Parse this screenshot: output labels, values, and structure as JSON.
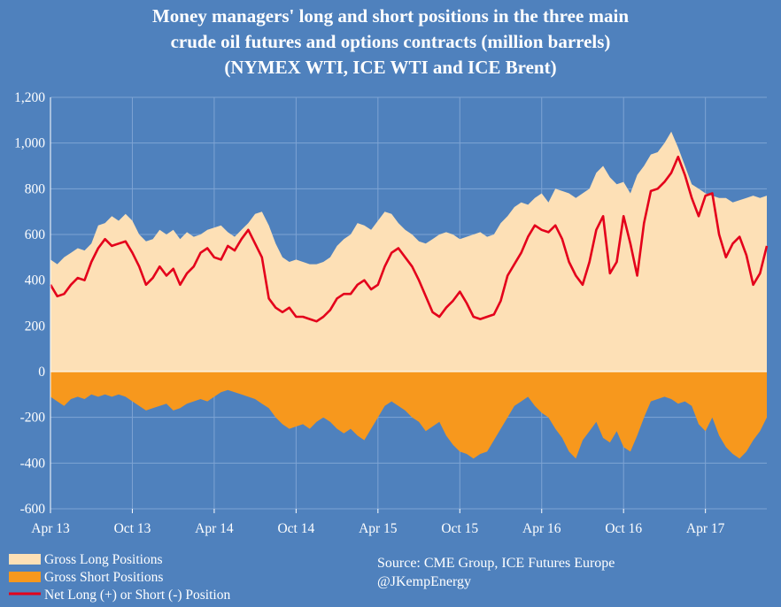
{
  "chart_data": {
    "type": "area",
    "title_lines": [
      "Money managers' long and short positions in the three main",
      "crude oil futures and options contracts (million barrels)",
      "(NYMEX WTI, ICE WTI and ICE Brent)"
    ],
    "xlabel": "",
    "ylabel": "",
    "ylim": [
      -600,
      1200
    ],
    "y_ticks": [
      -600,
      -400,
      -200,
      0,
      200,
      400,
      600,
      800,
      1000,
      1200
    ],
    "y_tick_labels": [
      "-600",
      "-400",
      "-200",
      "0",
      "200",
      "400",
      "600",
      "800",
      "1,000",
      "1,200"
    ],
    "x_range": [
      0,
      52.5
    ],
    "x_ticks": [
      0,
      6,
      12,
      18,
      24,
      30,
      36,
      42,
      48
    ],
    "x_tick_labels": [
      "Apr 13",
      "Oct 13",
      "Apr 14",
      "Oct 14",
      "Apr 15",
      "Oct 15",
      "Apr 16",
      "Oct 16",
      "Apr 17"
    ],
    "grid": true,
    "legend_position": "bottom-left",
    "colors": {
      "long": "#fde0b6",
      "short": "#f7981d",
      "net": "#e4001b",
      "background": "#4f81bd",
      "grid": "#7ea4d4"
    },
    "series": [
      {
        "name": "Gross Long Positions",
        "kind": "area",
        "x": [
          0,
          0.5,
          1,
          1.5,
          2,
          2.5,
          3,
          3.5,
          4,
          4.5,
          5,
          5.5,
          6,
          6.5,
          7,
          7.5,
          8,
          8.5,
          9,
          9.5,
          10,
          10.5,
          11,
          11.5,
          12,
          12.5,
          13,
          13.5,
          14,
          14.5,
          15,
          15.5,
          16,
          16.5,
          17,
          17.5,
          18,
          18.5,
          19,
          19.5,
          20,
          20.5,
          21,
          21.5,
          22,
          22.5,
          23,
          23.5,
          24,
          24.5,
          25,
          25.5,
          26,
          26.5,
          27,
          27.5,
          28,
          28.5,
          29,
          29.5,
          30,
          30.5,
          31,
          31.5,
          32,
          32.5,
          33,
          33.5,
          34,
          34.5,
          35,
          35.5,
          36,
          36.5,
          37,
          37.5,
          38,
          38.5,
          39,
          39.5,
          40,
          40.5,
          41,
          41.5,
          42,
          42.5,
          43,
          43.5,
          44,
          44.5,
          45,
          45.5,
          46,
          46.5,
          47,
          47.5,
          48,
          48.5,
          49,
          49.5,
          50,
          50.5,
          51,
          51.5,
          52,
          52.5
        ],
        "values": [
          490,
          470,
          500,
          520,
          540,
          530,
          560,
          640,
          650,
          680,
          660,
          690,
          660,
          600,
          570,
          580,
          620,
          600,
          620,
          580,
          610,
          590,
          600,
          620,
          630,
          640,
          610,
          590,
          620,
          650,
          690,
          700,
          640,
          560,
          500,
          480,
          490,
          480,
          470,
          470,
          480,
          500,
          550,
          580,
          600,
          650,
          640,
          620,
          660,
          700,
          690,
          650,
          620,
          600,
          570,
          560,
          580,
          600,
          610,
          600,
          580,
          590,
          600,
          610,
          590,
          600,
          650,
          680,
          720,
          740,
          730,
          760,
          780,
          740,
          800,
          790,
          780,
          760,
          780,
          800,
          870,
          900,
          850,
          820,
          830,
          780,
          860,
          900,
          950,
          960,
          1000,
          1050,
          980,
          900,
          820,
          800,
          780,
          770,
          760,
          760,
          740,
          750,
          760,
          770,
          760,
          770
        ],
        "color": "#fde0b6"
      },
      {
        "name": "Gross Short Positions",
        "kind": "area",
        "x": [
          0,
          0.5,
          1,
          1.5,
          2,
          2.5,
          3,
          3.5,
          4,
          4.5,
          5,
          5.5,
          6,
          6.5,
          7,
          7.5,
          8,
          8.5,
          9,
          9.5,
          10,
          10.5,
          11,
          11.5,
          12,
          12.5,
          13,
          13.5,
          14,
          14.5,
          15,
          15.5,
          16,
          16.5,
          17,
          17.5,
          18,
          18.5,
          19,
          19.5,
          20,
          20.5,
          21,
          21.5,
          22,
          22.5,
          23,
          23.5,
          24,
          24.5,
          25,
          25.5,
          26,
          26.5,
          27,
          27.5,
          28,
          28.5,
          29,
          29.5,
          30,
          30.5,
          31,
          31.5,
          32,
          32.5,
          33,
          33.5,
          34,
          34.5,
          35,
          35.5,
          36,
          36.5,
          37,
          37.5,
          38,
          38.5,
          39,
          39.5,
          40,
          40.5,
          41,
          41.5,
          42,
          42.5,
          43,
          43.5,
          44,
          44.5,
          45,
          45.5,
          46,
          46.5,
          47,
          47.5,
          48,
          48.5,
          49,
          49.5,
          50,
          50.5,
          51,
          51.5,
          52,
          52.5
        ],
        "values": [
          -110,
          -130,
          -150,
          -120,
          -110,
          -120,
          -100,
          -110,
          -100,
          -110,
          -100,
          -110,
          -130,
          -150,
          -170,
          -160,
          -150,
          -140,
          -170,
          -160,
          -140,
          -130,
          -120,
          -130,
          -110,
          -90,
          -80,
          -90,
          -100,
          -110,
          -120,
          -140,
          -160,
          -200,
          -230,
          -250,
          -240,
          -230,
          -250,
          -220,
          -200,
          -220,
          -250,
          -270,
          -250,
          -280,
          -300,
          -250,
          -200,
          -150,
          -130,
          -150,
          -170,
          -200,
          -220,
          -260,
          -240,
          -220,
          -280,
          -320,
          -350,
          -360,
          -380,
          -360,
          -350,
          -300,
          -250,
          -200,
          -150,
          -130,
          -110,
          -150,
          -180,
          -200,
          -250,
          -290,
          -350,
          -380,
          -300,
          -260,
          -220,
          -290,
          -310,
          -260,
          -330,
          -350,
          -280,
          -200,
          -130,
          -120,
          -110,
          -120,
          -140,
          -130,
          -150,
          -230,
          -260,
          -200,
          -280,
          -330,
          -360,
          -380,
          -350,
          -300,
          -260,
          -200
        ],
        "color": "#f7981d"
      },
      {
        "name": "Net Long (+) or Short (-) Position",
        "kind": "line",
        "x": [
          0,
          0.5,
          1,
          1.5,
          2,
          2.5,
          3,
          3.5,
          4,
          4.5,
          5,
          5.5,
          6,
          6.5,
          7,
          7.5,
          8,
          8.5,
          9,
          9.5,
          10,
          10.5,
          11,
          11.5,
          12,
          12.5,
          13,
          13.5,
          14,
          14.5,
          15,
          15.5,
          16,
          16.5,
          17,
          17.5,
          18,
          18.5,
          19,
          19.5,
          20,
          20.5,
          21,
          21.5,
          22,
          22.5,
          23,
          23.5,
          24,
          24.5,
          25,
          25.5,
          26,
          26.5,
          27,
          27.5,
          28,
          28.5,
          29,
          29.5,
          30,
          30.5,
          31,
          31.5,
          32,
          32.5,
          33,
          33.5,
          34,
          34.5,
          35,
          35.5,
          36,
          36.5,
          37,
          37.5,
          38,
          38.5,
          39,
          39.5,
          40,
          40.5,
          41,
          41.5,
          42,
          42.5,
          43,
          43.5,
          44,
          44.5,
          45,
          45.5,
          46,
          46.5,
          47,
          47.5,
          48,
          48.5,
          49,
          49.5,
          50,
          50.5,
          51,
          51.5,
          52,
          52.5
        ],
        "values": [
          380,
          330,
          340,
          380,
          410,
          400,
          480,
          540,
          580,
          550,
          560,
          570,
          520,
          460,
          380,
          410,
          460,
          420,
          450,
          380,
          430,
          460,
          520,
          540,
          500,
          490,
          550,
          530,
          580,
          620,
          560,
          500,
          320,
          280,
          260,
          280,
          240,
          240,
          230,
          220,
          240,
          270,
          320,
          340,
          340,
          380,
          400,
          360,
          380,
          460,
          520,
          540,
          500,
          460,
          400,
          330,
          260,
          240,
          280,
          310,
          350,
          300,
          240,
          230,
          240,
          250,
          310,
          420,
          470,
          520,
          590,
          640,
          620,
          610,
          640,
          580,
          480,
          420,
          380,
          480,
          620,
          680,
          430,
          480,
          680,
          560,
          420,
          650,
          790,
          800,
          830,
          870,
          940,
          860,
          760,
          680,
          770,
          780,
          600,
          500,
          560,
          590,
          510,
          380,
          430,
          550
        ],
        "color": "#e4001b"
      }
    ],
    "legend_entries": [
      {
        "label": "Gross Long Positions",
        "swatch": "area",
        "color": "#fde0b6"
      },
      {
        "label": "Gross Short Positions",
        "swatch": "area",
        "color": "#f7981d"
      },
      {
        "label": "Net Long (+) or Short (-) Position",
        "swatch": "line",
        "color": "#e4001b"
      }
    ],
    "annotations": [
      "Source:  CME Group, ICE Futures Europe",
      "@JKempEnergy"
    ]
  }
}
